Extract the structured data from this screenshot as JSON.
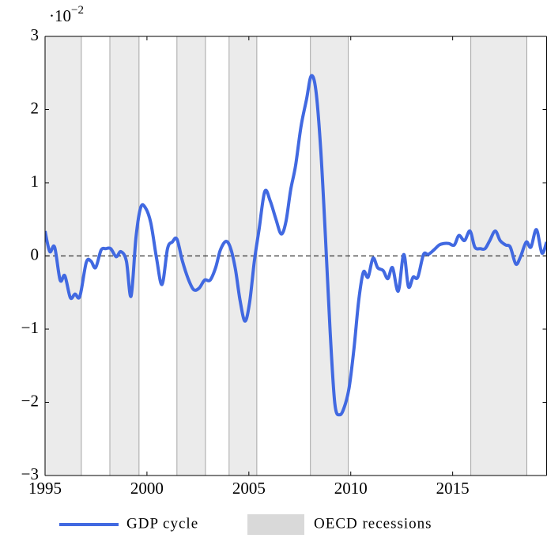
{
  "chart_data": {
    "type": "line",
    "y_scale_base": "·10",
    "y_scale_exponent": "−2",
    "xlim": [
      1995,
      2019.61
    ],
    "xticks": [
      1995,
      2000,
      2005,
      2010,
      2015
    ],
    "ylim": [
      -3,
      3
    ],
    "yticks": [
      {
        "value": -3,
        "label": "−3"
      },
      {
        "value": -2,
        "label": "−2"
      },
      {
        "value": -1,
        "label": "−1"
      },
      0,
      1,
      2,
      3
    ],
    "hline": 0,
    "recessions": {
      "name": "OECD recessions",
      "color": "#ebebeb",
      "edge_color": "#a6a6a6",
      "spans": [
        [
          1995.0,
          1996.78
        ],
        [
          1998.18,
          1999.61
        ],
        [
          2001.47,
          2002.87
        ],
        [
          2004.03,
          2005.39
        ],
        [
          2008.02,
          2009.88
        ],
        [
          2015.89,
          2018.64
        ]
      ]
    },
    "series": [
      {
        "name": "GDP cycle",
        "color": "#4169e1",
        "x": [
          1995.0,
          1995.23,
          1995.47,
          1995.74,
          1995.97,
          1996.24,
          1996.47,
          1996.71,
          1997.02,
          1997.25,
          1997.48,
          1997.75,
          1997.98,
          1998.22,
          1998.49,
          1998.72,
          1998.99,
          1999.22,
          1999.46,
          1999.69,
          1999.92,
          2000.19,
          2000.47,
          2000.74,
          2001.01,
          2001.24,
          2001.47,
          2001.74,
          2002.02,
          2002.29,
          2002.56,
          2002.83,
          2003.1,
          2003.37,
          2003.6,
          2003.88,
          2004.11,
          2004.34,
          2004.57,
          2004.81,
          2005.04,
          2005.27,
          2005.5,
          2005.78,
          2006.05,
          2006.32,
          2006.59,
          2006.82,
          2007.05,
          2007.29,
          2007.56,
          2007.83,
          2008.06,
          2008.29,
          2008.53,
          2008.76,
          2008.99,
          2009.22,
          2009.46,
          2009.69,
          2009.92,
          2010.16,
          2010.39,
          2010.62,
          2010.85,
          2011.09,
          2011.32,
          2011.59,
          2011.82,
          2012.05,
          2012.33,
          2012.6,
          2012.83,
          2013.06,
          2013.29,
          2013.57,
          2013.8,
          2014.07,
          2014.34,
          2014.57,
          2014.81,
          2015.08,
          2015.31,
          2015.58,
          2015.85,
          2016.09,
          2016.36,
          2016.59,
          2016.82,
          2017.09,
          2017.33,
          2017.6,
          2017.83,
          2018.1,
          2018.33,
          2018.61,
          2018.84,
          2019.11,
          2019.38,
          2019.61
        ],
        "values": [
          0.34,
          0.06,
          0.12,
          -0.33,
          -0.27,
          -0.57,
          -0.52,
          -0.55,
          -0.09,
          -0.07,
          -0.16,
          0.08,
          0.1,
          0.1,
          -0.01,
          0.06,
          -0.07,
          -0.55,
          0.25,
          0.66,
          0.66,
          0.45,
          -0.03,
          -0.39,
          0.1,
          0.19,
          0.23,
          -0.07,
          -0.31,
          -0.46,
          -0.44,
          -0.33,
          -0.33,
          -0.16,
          0.08,
          0.2,
          0.1,
          -0.18,
          -0.61,
          -0.89,
          -0.63,
          -0.07,
          0.36,
          0.88,
          0.75,
          0.51,
          0.3,
          0.47,
          0.9,
          1.23,
          1.77,
          2.14,
          2.46,
          2.26,
          1.44,
          0.25,
          -1.04,
          -2.02,
          -2.17,
          -2.06,
          -1.8,
          -1.26,
          -0.61,
          -0.22,
          -0.29,
          -0.03,
          -0.16,
          -0.2,
          -0.31,
          -0.16,
          -0.48,
          0.02,
          -0.42,
          -0.29,
          -0.29,
          0.02,
          0.02,
          0.08,
          0.15,
          0.17,
          0.17,
          0.15,
          0.28,
          0.21,
          0.34,
          0.12,
          0.1,
          0.1,
          0.21,
          0.34,
          0.21,
          0.15,
          0.12,
          -0.11,
          -0.01,
          0.19,
          0.12,
          0.36,
          0.04,
          0.19
        ]
      }
    ]
  }
}
